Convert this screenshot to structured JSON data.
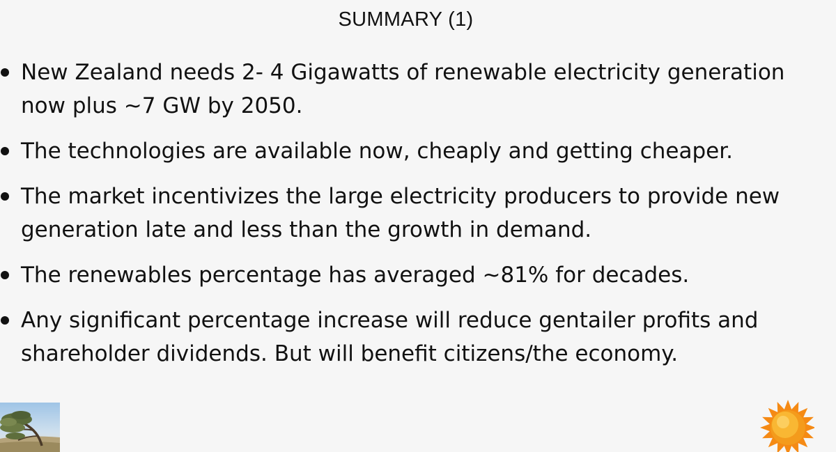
{
  "slide": {
    "title": "SUMMARY (1)"
  },
  "bullets": [
    {
      "lines": [
        "New Zealand needs 2- 4 Gigawatts of renewable electricity generation",
        "now plus ~7 GW by 2050."
      ]
    },
    {
      "lines": [
        "The technologies are available now, cheaply and getting cheaper."
      ]
    },
    {
      "lines": [
        "The market incentivizes the large electricity producers to provide new",
        "generation late and less than the growth in demand."
      ]
    },
    {
      "lines": [
        "The renewables percentage has averaged ~81% for decades."
      ]
    },
    {
      "lines": [
        "Any significant percentage increase will reduce gentailer profits and",
        "shareholder dividends. But will benefit citizens/the economy."
      ]
    }
  ],
  "images": {
    "tree": "windswept-tree-icon",
    "sun": "sun-icon"
  },
  "colors": {
    "background": "#f6f6f6",
    "text": "#111111",
    "sun_core": "#f7a21b",
    "sun_rays": "#f58a14"
  }
}
